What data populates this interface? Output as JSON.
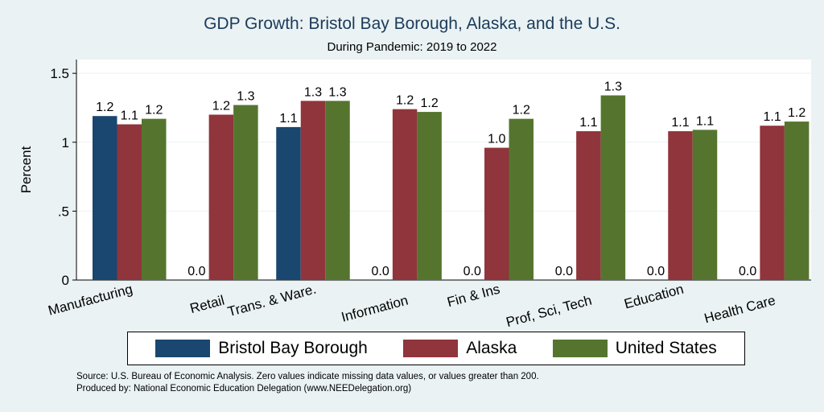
{
  "title": "GDP Growth: Bristol Bay Borough, Alaska, and the U.S.",
  "subtitle": "During Pandemic: 2019 to 2022",
  "notes": {
    "source": "Source: U.S. Bureau of Economic Analysis. Zero values indicate missing data values, or values greater than 200.",
    "produced": "Produced by: National Economic Education Delegation (www.NEEDelegation.org)"
  },
  "colors": {
    "bristol": "#1a476f",
    "alaska": "#90353b",
    "us": "#55752f",
    "plot_bg": "#ffffff",
    "grid": "#eaf2f3"
  },
  "chart_data": {
    "type": "bar",
    "title": "GDP Growth: Bristol Bay Borough, Alaska, and the U.S.",
    "subtitle": "During Pandemic: 2019 to 2022",
    "xlabel": "",
    "ylabel": "Percent",
    "ylim": [
      0,
      1.6
    ],
    "yticks": [
      0,
      0.5,
      1,
      1.5
    ],
    "ytick_labels": [
      "0",
      ".5",
      "1",
      "1.5"
    ],
    "grid": true,
    "legend_position": "bottom",
    "categories": [
      "Manufacturing",
      "Retail",
      "Trans. & Ware.",
      "Information",
      "Fin & Ins",
      "Prof, Sci, Tech",
      "Education",
      "Health Care"
    ],
    "series": [
      {
        "name": "Bristol Bay Borough",
        "color_key": "bristol",
        "values": [
          1.19,
          0,
          1.11,
          0,
          0,
          0,
          0,
          0
        ],
        "labels": [
          "1.2",
          "0.0",
          "1.1",
          "0.0",
          "0.0",
          "0.0",
          "0.0",
          "0.0"
        ]
      },
      {
        "name": "Alaska",
        "color_key": "alaska",
        "values": [
          1.13,
          1.2,
          1.3,
          1.24,
          0.96,
          1.08,
          1.08,
          1.12
        ],
        "labels": [
          "1.1",
          "1.2",
          "1.3",
          "1.2",
          "1.0",
          "1.1",
          "1.1",
          "1.1"
        ]
      },
      {
        "name": "United States",
        "color_key": "us",
        "values": [
          1.17,
          1.27,
          1.3,
          1.22,
          1.17,
          1.34,
          1.09,
          1.15
        ],
        "labels": [
          "1.2",
          "1.3",
          "1.3",
          "1.2",
          "1.2",
          "1.3",
          "1.1",
          "1.2"
        ]
      }
    ]
  }
}
